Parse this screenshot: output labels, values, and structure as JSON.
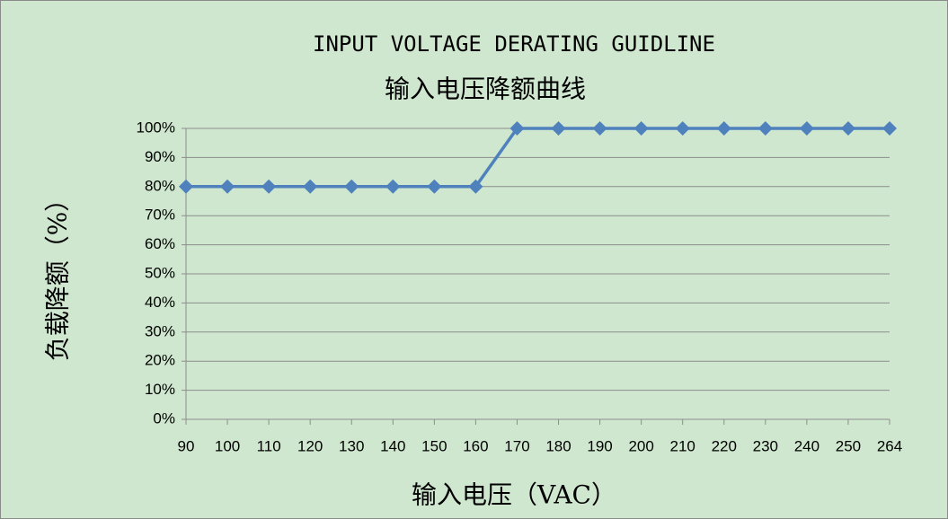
{
  "chart_data": {
    "type": "line",
    "title": "INPUT VOLTAGE DERATING  GUIDLINE",
    "subtitle": "输入电压降额曲线",
    "x_label": "输入电压（VAC）",
    "y_label": "负载降额（%）",
    "categories": [
      "90",
      "100",
      "110",
      "120",
      "130",
      "140",
      "150",
      "160",
      "170",
      "180",
      "190",
      "200",
      "210",
      "220",
      "230",
      "240",
      "250",
      "264"
    ],
    "values": [
      80,
      80,
      80,
      80,
      80,
      80,
      80,
      80,
      100,
      100,
      100,
      100,
      100,
      100,
      100,
      100,
      100,
      100
    ],
    "color": "#4f81bd",
    "ylim": [
      0,
      100
    ],
    "yticks": [
      {
        "value": 0,
        "label": "0%"
      },
      {
        "value": 10,
        "label": "10%"
      },
      {
        "value": 20,
        "label": "20%"
      },
      {
        "value": 30,
        "label": "30%"
      },
      {
        "value": 40,
        "label": "40%"
      },
      {
        "value": 50,
        "label": "50%"
      },
      {
        "value": 60,
        "label": "60%"
      },
      {
        "value": 70,
        "label": "70%"
      },
      {
        "value": 80,
        "label": "80%"
      },
      {
        "value": 90,
        "label": "90%"
      },
      {
        "value": 100,
        "label": "100%"
      }
    ],
    "grid": true
  }
}
